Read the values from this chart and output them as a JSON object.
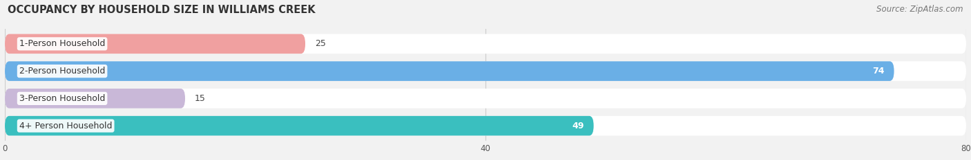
{
  "title": "OCCUPANCY BY HOUSEHOLD SIZE IN WILLIAMS CREEK",
  "source": "Source: ZipAtlas.com",
  "categories": [
    "1-Person Household",
    "2-Person Household",
    "3-Person Household",
    "4+ Person Household"
  ],
  "values": [
    25,
    74,
    15,
    49
  ],
  "bar_colors": [
    "#f0a0a0",
    "#6aafe6",
    "#c9b8d8",
    "#3abfbf"
  ],
  "value_label_inside": [
    false,
    true,
    false,
    true
  ],
  "xlim": [
    0,
    80
  ],
  "xticks": [
    0,
    40,
    80
  ],
  "title_fontsize": 10.5,
  "source_fontsize": 8.5,
  "bar_label_fontsize": 9,
  "category_fontsize": 9,
  "background_color": "#f2f2f2",
  "bar_bg_color": "#e8e8e8",
  "bar_height": 0.72,
  "bar_gap": 0.08
}
